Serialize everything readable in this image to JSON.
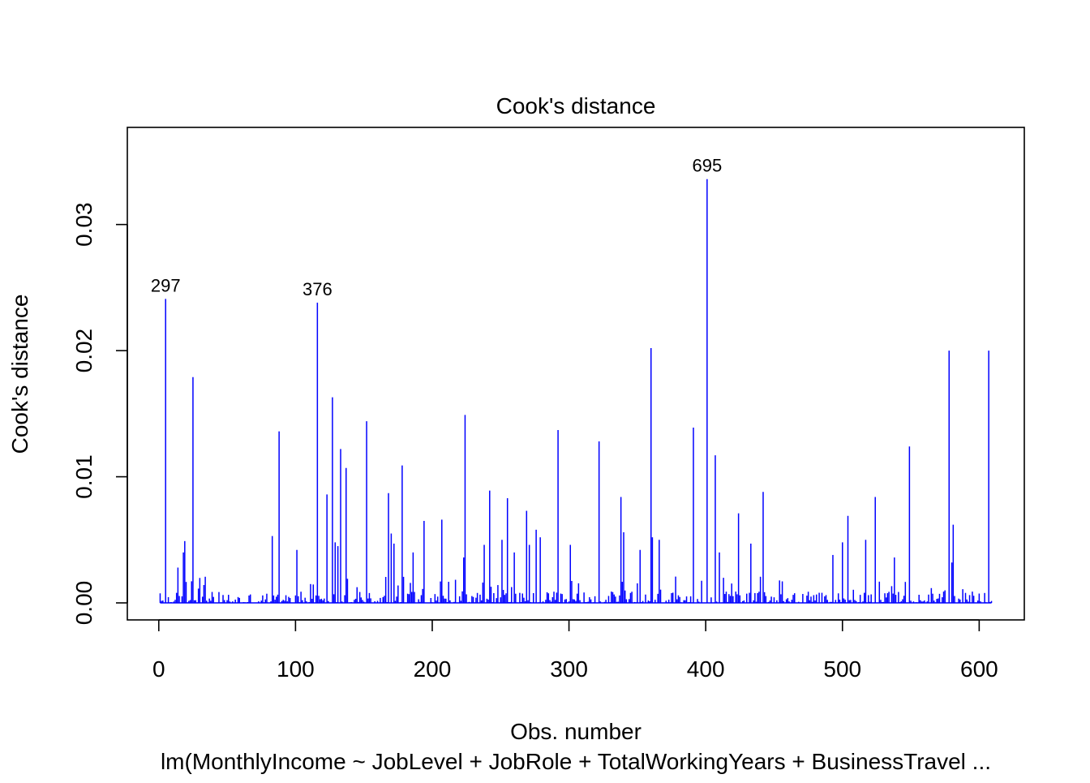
{
  "chart_data": {
    "type": "bar",
    "title": "Cook's distance",
    "xlabel": "Obs. number",
    "ylabel": "Cook's distance",
    "subtitle": "lm(MonthlyIncome ~ JobLevel + JobRole + TotalWorkingYears + BusinessTravel  ...",
    "xlim": [
      -23,
      633
    ],
    "ylim": [
      -0.00135,
      0.0377
    ],
    "x_ticks": [
      "0",
      "100",
      "200",
      "300",
      "400",
      "500",
      "600"
    ],
    "y_ticks": [
      "0.00",
      "0.01",
      "0.02",
      "0.03"
    ],
    "n_observations": 609,
    "color": "#0000ff",
    "grid": false,
    "prominent_spikes": [
      {
        "x": 5,
        "value": 0.0241,
        "label": "297"
      },
      {
        "x": 25,
        "value": 0.0179
      },
      {
        "x": 88,
        "value": 0.0136
      },
      {
        "x": 116,
        "value": 0.0238,
        "label": "376"
      },
      {
        "x": 127,
        "value": 0.0163
      },
      {
        "x": 133,
        "value": 0.0122
      },
      {
        "x": 137,
        "value": 0.0107
      },
      {
        "x": 152,
        "value": 0.0144
      },
      {
        "x": 168,
        "value": 0.0087
      },
      {
        "x": 178,
        "value": 0.0109
      },
      {
        "x": 224,
        "value": 0.0149
      },
      {
        "x": 242,
        "value": 0.0089
      },
      {
        "x": 255,
        "value": 0.0083
      },
      {
        "x": 292,
        "value": 0.0137
      },
      {
        "x": 322,
        "value": 0.0128
      },
      {
        "x": 338,
        "value": 0.0084
      },
      {
        "x": 360,
        "value": 0.0202
      },
      {
        "x": 391,
        "value": 0.0139
      },
      {
        "x": 401,
        "value": 0.0336,
        "label": "695"
      },
      {
        "x": 407,
        "value": 0.0117
      },
      {
        "x": 442,
        "value": 0.0088
      },
      {
        "x": 524,
        "value": 0.0084
      },
      {
        "x": 549,
        "value": 0.0124
      },
      {
        "x": 578,
        "value": 0.02
      },
      {
        "x": 607,
        "value": 0.02
      }
    ],
    "medium_spikes": [
      {
        "x": 18,
        "value": 0.004
      },
      {
        "x": 19,
        "value": 0.0049
      },
      {
        "x": 14,
        "value": 0.0028
      },
      {
        "x": 83,
        "value": 0.0053
      },
      {
        "x": 101,
        "value": 0.0042
      },
      {
        "x": 123,
        "value": 0.0086
      },
      {
        "x": 129,
        "value": 0.0048
      },
      {
        "x": 131,
        "value": 0.0045
      },
      {
        "x": 170,
        "value": 0.0055
      },
      {
        "x": 172,
        "value": 0.0047
      },
      {
        "x": 186,
        "value": 0.004
      },
      {
        "x": 194,
        "value": 0.0065
      },
      {
        "x": 207,
        "value": 0.0066
      },
      {
        "x": 223,
        "value": 0.0036
      },
      {
        "x": 238,
        "value": 0.0046
      },
      {
        "x": 251,
        "value": 0.005
      },
      {
        "x": 260,
        "value": 0.004
      },
      {
        "x": 269,
        "value": 0.0073
      },
      {
        "x": 271,
        "value": 0.0046
      },
      {
        "x": 276,
        "value": 0.0058
      },
      {
        "x": 279,
        "value": 0.0052
      },
      {
        "x": 301,
        "value": 0.0046
      },
      {
        "x": 340,
        "value": 0.0056
      },
      {
        "x": 352,
        "value": 0.0042
      },
      {
        "x": 361,
        "value": 0.0052
      },
      {
        "x": 366,
        "value": 0.005
      },
      {
        "x": 410,
        "value": 0.004
      },
      {
        "x": 424,
        "value": 0.0071
      },
      {
        "x": 433,
        "value": 0.0047
      },
      {
        "x": 493,
        "value": 0.0038
      },
      {
        "x": 500,
        "value": 0.0048
      },
      {
        "x": 504,
        "value": 0.0069
      },
      {
        "x": 517,
        "value": 0.005
      },
      {
        "x": 538,
        "value": 0.0036
      },
      {
        "x": 581,
        "value": 0.0062
      },
      {
        "x": 580,
        "value": 0.0032
      }
    ]
  }
}
